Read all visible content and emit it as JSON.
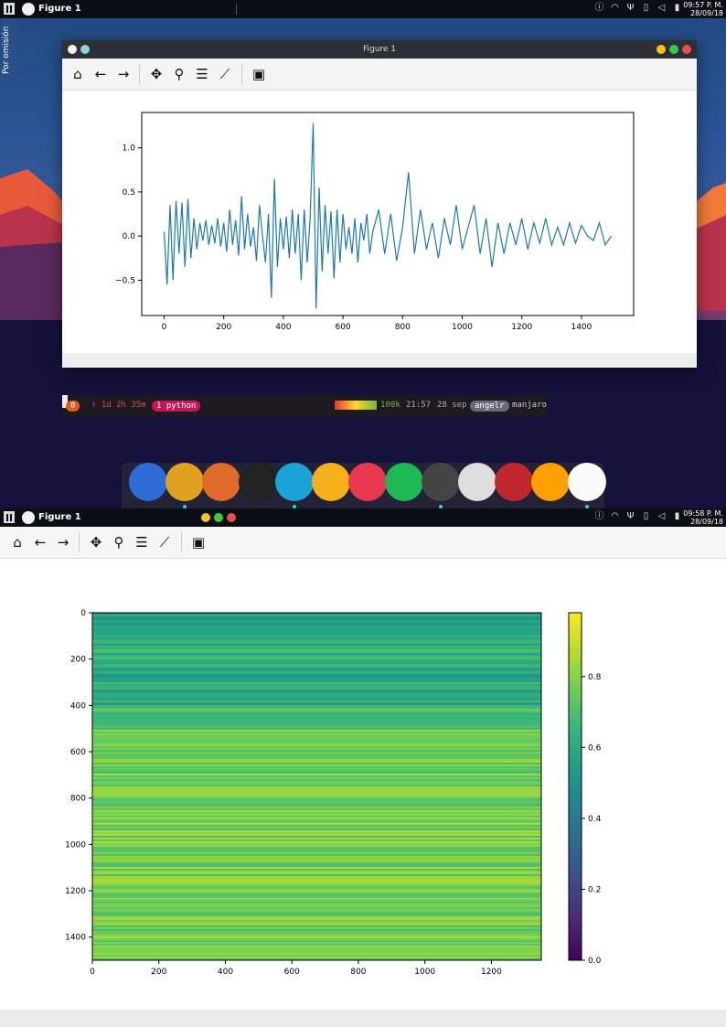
{
  "top_screen": {
    "panel": {
      "window_title": "Figure 1",
      "clock_time": "09:57 P. M.",
      "clock_date": "28/09/18"
    },
    "sidebar_tab": "Por omisión",
    "figure_window": {
      "title": "Figure 1",
      "colors": {
        "close": "#ef4b4b",
        "maximize": "#3cc84a",
        "minimize": "#f5c41c"
      }
    },
    "terminal": {
      "session": "0",
      "uptime": "↑ 1d 2h 35m",
      "process": "1 python",
      "net_speed": "100k",
      "time": "21:57",
      "date": "28 sep",
      "user": "angelr",
      "host": "manjaro"
    },
    "dock_icons": [
      "files-icon",
      "chromium-icon",
      "firefox-icon",
      "cool-retro-term-icon",
      "atom-icon",
      "anydesk-icon",
      "music-icon",
      "spotify-icon",
      "web-icon",
      "settings-toggle-icon",
      "writer-icon",
      "sublime-icon",
      "pinwheel-icon"
    ]
  },
  "bottom_screen": {
    "panel": {
      "window_title": "Figure 1",
      "clock_time": "09:58 P. M.",
      "clock_date": "28/09/18"
    }
  },
  "toolbar_icons": [
    "home-icon",
    "back-arrow-icon",
    "forward-arrow-icon",
    "pan-icon",
    "zoom-icon",
    "configure-subplots-icon",
    "edit-axis-icon",
    "save-icon"
  ],
  "chart_data": [
    {
      "type": "line",
      "title": "",
      "xlabel": "",
      "ylabel": "",
      "xlim": [
        -75,
        1575
      ],
      "ylim": [
        -0.9,
        1.4
      ],
      "xticks": [
        0,
        200,
        400,
        600,
        800,
        1000,
        1200,
        1400
      ],
      "yticks": [
        -0.5,
        0.0,
        0.5,
        1.0
      ],
      "xtick_labels": [
        "0",
        "200",
        "400",
        "600",
        "800",
        "1000",
        "1200",
        "1400"
      ],
      "ytick_labels": [
        "−0.5",
        "0.0",
        "0.5",
        "1.0"
      ],
      "series": [
        {
          "color": "#1f77b4",
          "x": [
            0,
            10,
            20,
            30,
            40,
            50,
            60,
            70,
            80,
            90,
            100,
            110,
            120,
            130,
            140,
            150,
            160,
            170,
            180,
            190,
            200,
            210,
            220,
            230,
            240,
            250,
            260,
            270,
            280,
            290,
            300,
            310,
            320,
            330,
            340,
            350,
            360,
            370,
            380,
            390,
            400,
            410,
            420,
            430,
            440,
            450,
            460,
            470,
            480,
            490,
            500,
            510,
            520,
            530,
            540,
            550,
            560,
            570,
            580,
            590,
            600,
            610,
            620,
            630,
            640,
            650,
            660,
            670,
            680,
            690,
            700,
            720,
            740,
            760,
            780,
            800,
            820,
            840,
            860,
            880,
            900,
            920,
            940,
            960,
            980,
            1000,
            1020,
            1040,
            1060,
            1080,
            1100,
            1120,
            1140,
            1160,
            1180,
            1200,
            1220,
            1240,
            1260,
            1280,
            1300,
            1320,
            1340,
            1360,
            1380,
            1400,
            1420,
            1440,
            1460,
            1480,
            1500
          ],
          "y": [
            0.05,
            -0.55,
            0.35,
            -0.5,
            0.4,
            -0.2,
            0.38,
            -0.35,
            0.42,
            -0.25,
            0.2,
            -0.15,
            0.15,
            -0.05,
            0.18,
            -0.1,
            0.12,
            -0.08,
            0.2,
            -0.12,
            0.15,
            -0.18,
            0.3,
            -0.1,
            0.18,
            -0.22,
            0.45,
            -0.15,
            0.25,
            -0.12,
            0.1,
            -0.28,
            0.35,
            0.0,
            -0.3,
            0.25,
            -0.7,
            0.65,
            -0.35,
            0.2,
            -0.15,
            0.22,
            -0.25,
            0.3,
            -0.2,
            0.25,
            -0.5,
            0.3,
            -0.3,
            0.2,
            1.28,
            -0.82,
            0.55,
            -0.4,
            0.35,
            -0.2,
            0.28,
            -0.48,
            0.3,
            -0.3,
            0.25,
            -0.15,
            0.1,
            -0.2,
            0.2,
            -0.3,
            0.15,
            -0.05,
            0.25,
            -0.2,
            0.05,
            0.3,
            -0.2,
            0.25,
            -0.28,
            0.1,
            0.72,
            -0.2,
            0.3,
            -0.15,
            0.15,
            -0.25,
            0.2,
            -0.1,
            0.35,
            -0.15,
            0.1,
            0.35,
            -0.2,
            0.2,
            -0.35,
            0.15,
            -0.2,
            0.15,
            -0.1,
            0.2,
            -0.15,
            0.15,
            -0.08,
            0.2,
            -0.1,
            0.1,
            -0.1,
            0.15,
            -0.08,
            0.12,
            0.0,
            -0.05,
            0.15,
            -0.1,
            0.0
          ]
        }
      ]
    },
    {
      "type": "heatmap",
      "title": "",
      "xlabel": "",
      "ylabel": "",
      "xlim": [
        0,
        1350
      ],
      "ylim": [
        1500,
        0
      ],
      "xticks": [
        0,
        200,
        400,
        600,
        800,
        1000,
        1200
      ],
      "yticks": [
        0,
        200,
        400,
        600,
        800,
        1000,
        1200,
        1400
      ],
      "xtick_labels": [
        "0",
        "200",
        "400",
        "600",
        "800",
        "1000",
        "1200"
      ],
      "ytick_labels": [
        "0",
        "200",
        "400",
        "600",
        "800",
        "1000",
        "1200",
        "1400"
      ],
      "colormap": "viridis",
      "colorbar": {
        "min": 0.0,
        "max": 0.98,
        "ticks": [
          0.0,
          0.2,
          0.4,
          0.6,
          0.8
        ],
        "tick_labels": [
          "0.0",
          "0.2",
          "0.4",
          "0.6",
          "0.8"
        ]
      },
      "row_bands": [
        {
          "y_start": 0,
          "y_end": 100,
          "value": 0.55
        },
        {
          "y_start": 100,
          "y_end": 200,
          "value": 0.62
        },
        {
          "y_start": 200,
          "y_end": 300,
          "value": 0.58
        },
        {
          "y_start": 300,
          "y_end": 400,
          "value": 0.6
        },
        {
          "y_start": 400,
          "y_end": 500,
          "value": 0.68
        },
        {
          "y_start": 500,
          "y_end": 600,
          "value": 0.74
        },
        {
          "y_start": 600,
          "y_end": 800,
          "value": 0.76
        },
        {
          "y_start": 800,
          "y_end": 1000,
          "value": 0.78
        },
        {
          "y_start": 1000,
          "y_end": 1200,
          "value": 0.77
        },
        {
          "y_start": 1200,
          "y_end": 1400,
          "value": 0.75
        },
        {
          "y_start": 1400,
          "y_end": 1500,
          "value": 0.78
        }
      ]
    }
  ]
}
